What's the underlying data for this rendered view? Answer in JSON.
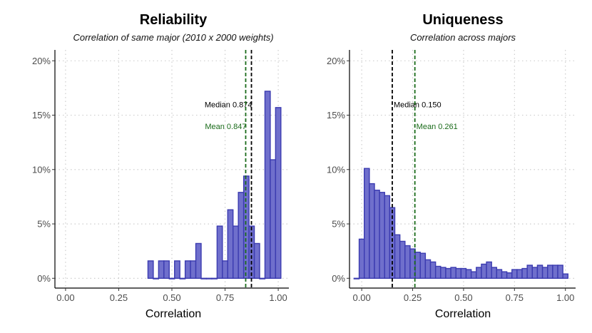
{
  "chart_data": [
    {
      "type": "bar",
      "title": "Reliability",
      "subtitle": "Correlation of same major (2010 x 2000 weights)",
      "xlabel": "Correlation",
      "ylabel": "",
      "xlim": [
        -0.05,
        1.05
      ],
      "ylim": [
        -0.009,
        0.21
      ],
      "xticks": [
        0,
        0.25,
        0.5,
        0.75,
        1.0
      ],
      "xtick_labels": [
        "0.00",
        "0.25",
        "0.50",
        "0.75",
        "1.00"
      ],
      "yticks": [
        0,
        0.05,
        0.1,
        0.15,
        0.2
      ],
      "ytick_labels": [
        "0%",
        "5%",
        "10%",
        "15%",
        "20%"
      ],
      "bin_width": 0.025,
      "bins": [
        {
          "x": 0.4,
          "y": 0.016
        },
        {
          "x": 0.425,
          "y": 0.0
        },
        {
          "x": 0.45,
          "y": 0.016
        },
        {
          "x": 0.475,
          "y": 0.016
        },
        {
          "x": 0.5,
          "y": 0.0
        },
        {
          "x": 0.525,
          "y": 0.016
        },
        {
          "x": 0.55,
          "y": 0.0
        },
        {
          "x": 0.575,
          "y": 0.016
        },
        {
          "x": 0.6,
          "y": 0.016
        },
        {
          "x": 0.625,
          "y": 0.032
        },
        {
          "x": 0.65,
          "y": 0.0
        },
        {
          "x": 0.675,
          "y": 0.0
        },
        {
          "x": 0.7,
          "y": 0.0
        },
        {
          "x": 0.725,
          "y": 0.048
        },
        {
          "x": 0.75,
          "y": 0.016
        },
        {
          "x": 0.775,
          "y": 0.063
        },
        {
          "x": 0.8,
          "y": 0.048
        },
        {
          "x": 0.825,
          "y": 0.079
        },
        {
          "x": 0.85,
          "y": 0.094
        },
        {
          "x": 0.875,
          "y": 0.048
        },
        {
          "x": 0.9,
          "y": 0.032
        },
        {
          "x": 0.925,
          "y": 0.0
        },
        {
          "x": 0.95,
          "y": 0.172
        },
        {
          "x": 0.975,
          "y": 0.109
        },
        {
          "x": 1.0,
          "y": 0.157
        }
      ],
      "vlines": [
        {
          "name": "median",
          "x": 0.874,
          "color": "#000000",
          "label": "Median 0.874",
          "label_y": 0.16,
          "label_side": "left"
        },
        {
          "name": "mean",
          "x": 0.847,
          "color": "#1a6b1a",
          "label": "Mean 0.847",
          "label_y": 0.14,
          "label_side": "left"
        }
      ]
    },
    {
      "type": "bar",
      "title": "Uniqueness",
      "subtitle": "Correlation across majors",
      "xlabel": "Correlation",
      "ylabel": "",
      "xlim": [
        -0.06,
        1.05
      ],
      "ylim": [
        -0.009,
        0.21
      ],
      "xticks": [
        0,
        0.25,
        0.5,
        0.75,
        1.0
      ],
      "xtick_labels": [
        "0.00",
        "0.25",
        "0.50",
        "0.75",
        "1.00"
      ],
      "yticks": [
        0,
        0.05,
        0.1,
        0.15,
        0.2
      ],
      "ytick_labels": [
        "0%",
        "5%",
        "10%",
        "15%",
        "20%"
      ],
      "bin_width": 0.025,
      "bins": [
        {
          "x": -0.025,
          "y": 0.0
        },
        {
          "x": 0.0,
          "y": 0.036
        },
        {
          "x": 0.025,
          "y": 0.101
        },
        {
          "x": 0.05,
          "y": 0.087
        },
        {
          "x": 0.075,
          "y": 0.081
        },
        {
          "x": 0.1,
          "y": 0.079
        },
        {
          "x": 0.125,
          "y": 0.076
        },
        {
          "x": 0.15,
          "y": 0.065
        },
        {
          "x": 0.175,
          "y": 0.04
        },
        {
          "x": 0.2,
          "y": 0.034
        },
        {
          "x": 0.225,
          "y": 0.03
        },
        {
          "x": 0.25,
          "y": 0.027
        },
        {
          "x": 0.275,
          "y": 0.024
        },
        {
          "x": 0.3,
          "y": 0.023
        },
        {
          "x": 0.325,
          "y": 0.017
        },
        {
          "x": 0.35,
          "y": 0.015
        },
        {
          "x": 0.375,
          "y": 0.011
        },
        {
          "x": 0.4,
          "y": 0.01
        },
        {
          "x": 0.425,
          "y": 0.009
        },
        {
          "x": 0.45,
          "y": 0.01
        },
        {
          "x": 0.475,
          "y": 0.009
        },
        {
          "x": 0.5,
          "y": 0.009
        },
        {
          "x": 0.525,
          "y": 0.008
        },
        {
          "x": 0.55,
          "y": 0.006
        },
        {
          "x": 0.575,
          "y": 0.01
        },
        {
          "x": 0.6,
          "y": 0.013
        },
        {
          "x": 0.625,
          "y": 0.015
        },
        {
          "x": 0.65,
          "y": 0.01
        },
        {
          "x": 0.675,
          "y": 0.008
        },
        {
          "x": 0.7,
          "y": 0.006
        },
        {
          "x": 0.725,
          "y": 0.005
        },
        {
          "x": 0.75,
          "y": 0.008
        },
        {
          "x": 0.775,
          "y": 0.008
        },
        {
          "x": 0.8,
          "y": 0.009
        },
        {
          "x": 0.825,
          "y": 0.012
        },
        {
          "x": 0.85,
          "y": 0.01
        },
        {
          "x": 0.875,
          "y": 0.012
        },
        {
          "x": 0.9,
          "y": 0.01
        },
        {
          "x": 0.925,
          "y": 0.012
        },
        {
          "x": 0.95,
          "y": 0.012
        },
        {
          "x": 0.975,
          "y": 0.012
        },
        {
          "x": 1.0,
          "y": 0.004
        }
      ],
      "vlines": [
        {
          "name": "median",
          "x": 0.15,
          "color": "#000000",
          "label": "Median 0.150",
          "label_y": 0.16,
          "label_side": "right"
        },
        {
          "name": "mean",
          "x": 0.261,
          "color": "#1a6b1a",
          "label": "Mean 0.261",
          "label_y": 0.14,
          "label_side": "right"
        }
      ]
    }
  ]
}
